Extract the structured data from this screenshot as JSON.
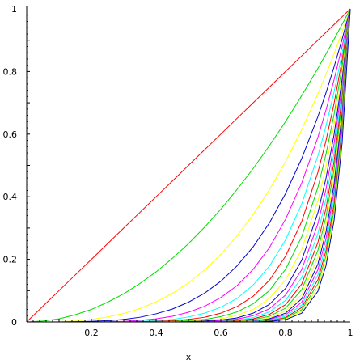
{
  "chart_data": {
    "type": "line",
    "title": "",
    "xlabel": "x",
    "ylabel": "",
    "xlim": [
      0,
      1
    ],
    "ylim": [
      0,
      1
    ],
    "grid": false,
    "legend": "none",
    "x_ticks": [
      {
        "value": 0.2,
        "label": "0.2"
      },
      {
        "value": 0.4,
        "label": "0.4"
      },
      {
        "value": 0.6,
        "label": "0.6"
      },
      {
        "value": 0.8,
        "label": "0.8"
      },
      {
        "value": 1.0,
        "label": "1"
      }
    ],
    "y_ticks": [
      {
        "value": 0.0,
        "label": "0"
      },
      {
        "value": 0.2,
        "label": "0.2"
      },
      {
        "value": 0.4,
        "label": "0.4"
      },
      {
        "value": 0.6,
        "label": "0.6"
      },
      {
        "value": 0.8,
        "label": "0.8"
      },
      {
        "value": 1.0,
        "label": "1"
      }
    ],
    "x": [
      0,
      0.05,
      0.1,
      0.15,
      0.2,
      0.25,
      0.3,
      0.35,
      0.4,
      0.45,
      0.5,
      0.55,
      0.6,
      0.65,
      0.7,
      0.75,
      0.8,
      0.85,
      0.9,
      0.925,
      0.95,
      0.975,
      1
    ],
    "series": [
      {
        "color": "#ff0000",
        "values": [
          0,
          0.05,
          0.1,
          0.15,
          0.2,
          0.25,
          0.3,
          0.35,
          0.4,
          0.45,
          0.5,
          0.55,
          0.6,
          0.65,
          0.7,
          0.75,
          0.8,
          0.85,
          0.9,
          0.925,
          0.95,
          0.975,
          1
        ]
      },
      {
        "color": "#00dd00",
        "values": [
          0,
          0.003,
          0.01,
          0.023,
          0.04,
          0.063,
          0.09,
          0.123,
          0.16,
          0.203,
          0.25,
          0.303,
          0.36,
          0.423,
          0.49,
          0.563,
          0.64,
          0.723,
          0.81,
          0.856,
          0.903,
          0.951,
          1
        ]
      },
      {
        "color": "#ffff00",
        "values": [
          0,
          0,
          0.001,
          0.003,
          0.008,
          0.016,
          0.027,
          0.043,
          0.064,
          0.091,
          0.125,
          0.166,
          0.216,
          0.275,
          0.343,
          0.422,
          0.512,
          0.614,
          0.729,
          0.791,
          0.857,
          0.927,
          1
        ]
      },
      {
        "color": "#0000cc",
        "values": [
          0,
          0,
          0,
          0.001,
          0.002,
          0.004,
          0.008,
          0.015,
          0.026,
          0.041,
          0.063,
          0.092,
          0.13,
          0.179,
          0.24,
          0.316,
          0.41,
          0.522,
          0.656,
          0.732,
          0.815,
          0.904,
          1
        ]
      },
      {
        "color": "#ff00ff",
        "values": [
          0,
          0,
          0,
          0,
          0,
          0.001,
          0.002,
          0.005,
          0.01,
          0.018,
          0.031,
          0.05,
          0.078,
          0.116,
          0.168,
          0.237,
          0.328,
          0.444,
          0.59,
          0.677,
          0.774,
          0.881,
          1
        ]
      },
      {
        "color": "#00ffff",
        "values": [
          0,
          0,
          0,
          0,
          0,
          0,
          0.001,
          0.002,
          0.004,
          0.008,
          0.016,
          0.028,
          0.047,
          0.075,
          0.118,
          0.178,
          0.262,
          0.377,
          0.531,
          0.626,
          0.735,
          0.859,
          1
        ]
      },
      {
        "color": "#ff0000",
        "values": [
          0,
          0,
          0,
          0,
          0,
          0,
          0,
          0.001,
          0.002,
          0.004,
          0.008,
          0.015,
          0.028,
          0.049,
          0.082,
          0.133,
          0.21,
          0.321,
          0.478,
          0.579,
          0.698,
          0.838,
          1
        ]
      },
      {
        "color": "#00dd00",
        "values": [
          0,
          0,
          0,
          0,
          0,
          0,
          0,
          0,
          0.001,
          0.002,
          0.004,
          0.008,
          0.017,
          0.032,
          0.058,
          0.1,
          0.168,
          0.272,
          0.43,
          0.536,
          0.663,
          0.817,
          1
        ]
      },
      {
        "color": "#ffff00",
        "values": [
          0,
          0,
          0,
          0,
          0,
          0,
          0,
          0,
          0,
          0.001,
          0.002,
          0.005,
          0.01,
          0.021,
          0.04,
          0.075,
          0.134,
          0.232,
          0.387,
          0.496,
          0.63,
          0.796,
          1
        ]
      },
      {
        "color": "#0000cc",
        "values": [
          0,
          0,
          0,
          0,
          0,
          0,
          0,
          0,
          0,
          0,
          0.001,
          0.003,
          0.006,
          0.013,
          0.028,
          0.056,
          0.107,
          0.197,
          0.349,
          0.459,
          0.599,
          0.776,
          1
        ]
      },
      {
        "color": "#ff00ff",
        "values": [
          0,
          0,
          0,
          0,
          0,
          0,
          0,
          0,
          0,
          0,
          0,
          0.001,
          0.004,
          0.009,
          0.02,
          0.042,
          0.086,
          0.167,
          0.314,
          0.424,
          0.569,
          0.757,
          1
        ]
      },
      {
        "color": "#00ffff",
        "values": [
          0,
          0,
          0,
          0,
          0,
          0,
          0,
          0,
          0,
          0,
          0,
          0,
          0.002,
          0.006,
          0.014,
          0.032,
          0.069,
          0.142,
          0.282,
          0.393,
          0.54,
          0.738,
          1
        ]
      },
      {
        "color": "#ff0000",
        "values": [
          0,
          0,
          0,
          0,
          0,
          0,
          0,
          0,
          0,
          0,
          0,
          0,
          0.001,
          0.004,
          0.01,
          0.024,
          0.055,
          0.121,
          0.254,
          0.363,
          0.513,
          0.719,
          1
        ]
      },
      {
        "color": "#00dd00",
        "values": [
          0,
          0,
          0,
          0,
          0,
          0,
          0,
          0,
          0,
          0,
          0,
          0,
          0.001,
          0.002,
          0.007,
          0.018,
          0.044,
          0.103,
          0.229,
          0.336,
          0.488,
          0.701,
          1
        ]
      },
      {
        "color": "#ffff00",
        "values": [
          0,
          0,
          0,
          0,
          0,
          0,
          0,
          0,
          0,
          0,
          0,
          0,
          0,
          0.002,
          0.005,
          0.013,
          0.035,
          0.087,
          0.206,
          0.311,
          0.463,
          0.684,
          1
        ]
      },
      {
        "color": "#0000cc",
        "values": [
          0,
          0,
          0,
          0,
          0,
          0,
          0,
          0,
          0,
          0,
          0,
          0,
          0,
          0.001,
          0.003,
          0.01,
          0.028,
          0.074,
          0.185,
          0.288,
          0.44,
          0.667,
          1
        ]
      },
      {
        "color": "#ff00ff",
        "values": [
          0,
          0,
          0,
          0,
          0,
          0,
          0,
          0,
          0,
          0,
          0,
          0,
          0,
          0.001,
          0.002,
          0.008,
          0.023,
          0.063,
          0.167,
          0.266,
          0.418,
          0.65,
          1
        ]
      },
      {
        "color": "#00ffff",
        "values": [
          0,
          0,
          0,
          0,
          0,
          0,
          0,
          0,
          0,
          0,
          0,
          0,
          0,
          0,
          0.002,
          0.006,
          0.018,
          0.054,
          0.15,
          0.246,
          0.397,
          0.634,
          1
        ]
      },
      {
        "color": "#ff0000",
        "values": [
          0,
          0,
          0,
          0,
          0,
          0,
          0,
          0,
          0,
          0,
          0,
          0,
          0,
          0,
          0.001,
          0.004,
          0.014,
          0.046,
          0.135,
          0.228,
          0.377,
          0.618,
          1
        ]
      },
      {
        "color": "#00dd00",
        "values": [
          0,
          0,
          0,
          0,
          0,
          0,
          0,
          0,
          0,
          0,
          0,
          0,
          0,
          0,
          0.001,
          0.003,
          0.012,
          0.039,
          0.122,
          0.211,
          0.358,
          0.603,
          1
        ]
      },
      {
        "color": "#ffff00",
        "values": [
          0,
          0,
          0,
          0,
          0,
          0,
          0,
          0,
          0,
          0,
          0,
          0,
          0,
          0,
          0.001,
          0.002,
          0.009,
          0.033,
          0.109,
          0.195,
          0.341,
          0.588,
          1
        ]
      },
      {
        "color": "#0000cc",
        "values": [
          0,
          0,
          0,
          0,
          0,
          0,
          0,
          0,
          0,
          0,
          0,
          0,
          0,
          0,
          0,
          0.002,
          0.007,
          0.028,
          0.098,
          0.18,
          0.324,
          0.573,
          1
        ]
      }
    ]
  }
}
